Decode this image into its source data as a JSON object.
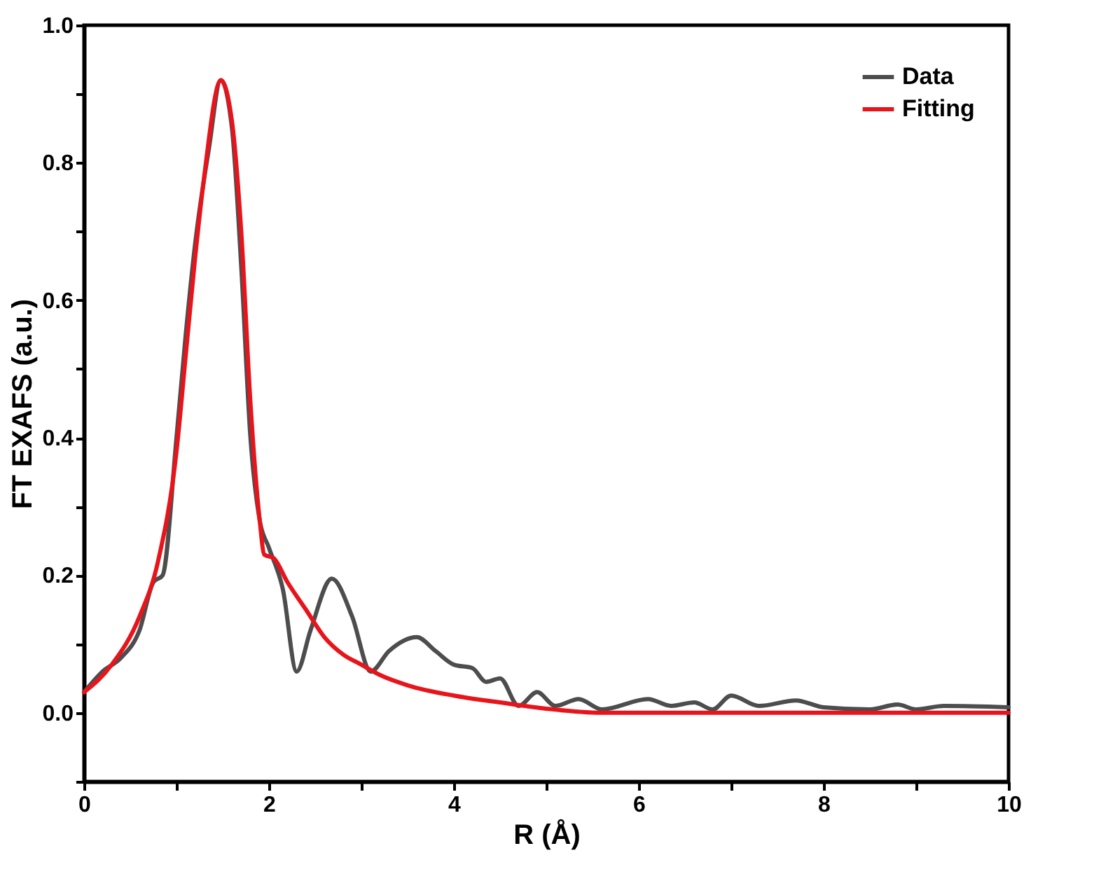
{
  "chart_data": {
    "type": "line",
    "xlabel": "R (Å)",
    "ylabel": "FT EXAFS (a.u.)",
    "xlim": [
      0,
      10
    ],
    "ylim": [
      -0.1,
      1.0
    ],
    "xticks": [
      0,
      {
        "value": 1,
        "label": null
      },
      2,
      {
        "value": 3,
        "label": null
      },
      4,
      {
        "value": 5,
        "label": null
      },
      6,
      {
        "value": 7,
        "label": null
      },
      8,
      {
        "value": 9,
        "label": null
      },
      10
    ],
    "yticks": [
      {
        "value": -0.1,
        "label": null
      },
      {
        "value": 0,
        "label": "0.0"
      },
      {
        "value": 0.1,
        "label": null
      },
      {
        "value": 0.2,
        "label": "0.2"
      },
      {
        "value": 0.3,
        "label": null
      },
      {
        "value": 0.4,
        "label": "0.4"
      },
      {
        "value": 0.5,
        "label": null
      },
      {
        "value": 0.6,
        "label": "0.6"
      },
      {
        "value": 0.7,
        "label": null
      },
      {
        "value": 0.8,
        "label": "0.8"
      },
      {
        "value": 0.9,
        "label": null
      },
      {
        "value": 1.0,
        "label": "1.0"
      }
    ],
    "legend": "top right",
    "grid": false,
    "line_style": "solid",
    "marker": "none",
    "series": [
      {
        "name": "Data",
        "color": "#4d4d4d",
        "x": [
          0,
          0.2,
          0.4,
          0.6,
          0.75,
          0.85,
          1.0,
          1.1,
          1.2,
          1.35,
          1.48,
          1.6,
          1.7,
          1.8,
          1.9,
          2.0,
          2.15,
          2.3,
          2.45,
          2.68,
          2.9,
          3.1,
          3.3,
          3.6,
          3.8,
          4.0,
          4.2,
          4.35,
          4.5,
          4.7,
          4.9,
          5.1,
          5.35,
          5.6,
          6.1,
          6.35,
          6.6,
          6.8,
          7.0,
          7.3,
          7.7,
          8.0,
          8.5,
          8.8,
          9.0,
          9.3,
          10
        ],
        "values": [
          0.03,
          0.06,
          0.08,
          0.12,
          0.19,
          0.2,
          0.4,
          0.55,
          0.68,
          0.82,
          0.92,
          0.85,
          0.65,
          0.4,
          0.28,
          0.24,
          0.18,
          0.06,
          0.12,
          0.195,
          0.14,
          0.06,
          0.09,
          0.11,
          0.09,
          0.07,
          0.065,
          0.045,
          0.05,
          0.01,
          0.03,
          0.01,
          0.02,
          0.005,
          0.02,
          0.01,
          0.015,
          0.005,
          0.025,
          0.01,
          0.018,
          0.008,
          0.005,
          0.012,
          0.005,
          0.01,
          0.008
        ]
      },
      {
        "name": "Fitting",
        "color": "#e8141b",
        "x": [
          0,
          0.3,
          0.6,
          0.8,
          1.0,
          1.1,
          1.2,
          1.3,
          1.48,
          1.6,
          1.7,
          1.8,
          1.9,
          1.95,
          2.05,
          2.2,
          2.4,
          2.6,
          2.8,
          3.0,
          3.2,
          3.5,
          4.0,
          4.5,
          5.0,
          5.6,
          6.5,
          10
        ],
        "values": [
          0.03,
          0.07,
          0.14,
          0.22,
          0.38,
          0.52,
          0.66,
          0.78,
          0.92,
          0.86,
          0.7,
          0.45,
          0.28,
          0.23,
          0.225,
          0.19,
          0.15,
          0.11,
          0.085,
          0.07,
          0.055,
          0.04,
          0.025,
          0.015,
          0.006,
          0.0,
          0.0,
          0.0
        ]
      }
    ]
  }
}
